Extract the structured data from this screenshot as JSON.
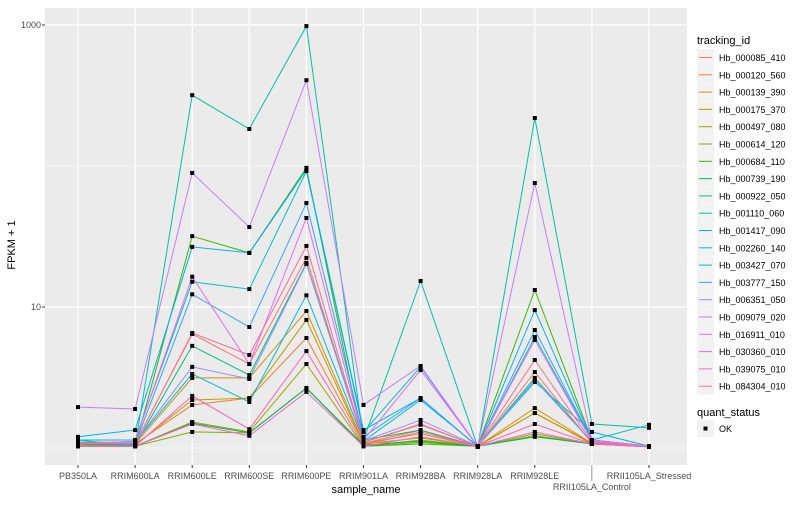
{
  "chart_data": {
    "type": "line",
    "xlabel": "sample_name",
    "ylabel": "FPKM + 1",
    "y_scale": "log10",
    "ylim": [
      1,
      1000
    ],
    "y_ticks": [
      10,
      1000
    ],
    "y_tick_labels": [
      "10",
      "1000"
    ],
    "grid": true,
    "legend_position": "right",
    "categories": [
      "PB350LA",
      "RRIM600LA",
      "RRIM600LE",
      "RRIM600SE",
      "RRIM600PE",
      "RRIM901LA",
      "RRIM928BA",
      "RRIM928LA",
      "RRIM928LE",
      "RRII105LA_Control",
      "RRII105LA_Stressed"
    ],
    "legend_title": "tracking_id",
    "series": [
      {
        "name": "Hb_000085_410",
        "color": "#F8766D",
        "values": [
          1.07,
          1.08,
          6.43,
          3.94,
          22.3,
          1.1,
          1.46,
          1.03,
          3.46,
          1.08,
          1.03
        ]
      },
      {
        "name": "Hb_000120_560",
        "color": "#EA8331",
        "values": [
          1.07,
          1.07,
          2.02,
          2.26,
          6.03,
          1.08,
          1.34,
          1.03,
          1.77,
          1.08,
          1.02
        ]
      },
      {
        "name": "Hb_000139_390",
        "color": "#D89000",
        "values": [
          1.05,
          1.07,
          3.14,
          3.14,
          9.37,
          1.08,
          1.26,
          1.03,
          1.92,
          1.08,
          1.02
        ]
      },
      {
        "name": "Hb_000175_370",
        "color": "#C09B00",
        "values": [
          1.05,
          1.05,
          2.19,
          2.26,
          8.1,
          1.07,
          1.18,
          1.03,
          1.77,
          1.07,
          1.02
        ]
      },
      {
        "name": "Hb_000497_080",
        "color": "#A3A500",
        "values": [
          1.03,
          1.03,
          1.53,
          1.3,
          3.94,
          1.03,
          1.14,
          1.03,
          1.26,
          1.07,
          1.02
        ]
      },
      {
        "name": "Hb_000614_120",
        "color": "#7CAE00",
        "values": [
          1.03,
          1.03,
          1.3,
          1.28,
          2.66,
          1.03,
          1.1,
          1.03,
          1.22,
          1.07,
          1.02
        ]
      },
      {
        "name": "Hb_000684_110",
        "color": "#39B600",
        "values": [
          1.03,
          1.03,
          31.8,
          24.2,
          97,
          1.03,
          1.07,
          1.03,
          13.2,
          1.14,
          1.03
        ]
      },
      {
        "name": "Hb_000739_190",
        "color": "#00BB4E",
        "values": [
          1.03,
          1.03,
          1.5,
          1.28,
          2.66,
          1.05,
          1.12,
          1.03,
          1.2,
          1.07,
          1.02
        ]
      },
      {
        "name": "Hb_000922_050",
        "color": "#00BF7D",
        "values": [
          1.07,
          1.05,
          5.3,
          3.29,
          20.5,
          1.14,
          1.34,
          1.03,
          3.14,
          1.1,
          1.03
        ]
      },
      {
        "name": "Hb_001110_060",
        "color": "#00C1A3",
        "values": [
          1.14,
          1.03,
          318,
          183,
          982,
          1.14,
          15.3,
          1.02,
          219,
          1.48,
          1.39
        ]
      },
      {
        "name": "Hb_001417_090",
        "color": "#00BFC4",
        "values": [
          1.14,
          1.14,
          15.1,
          13.4,
          92,
          1.3,
          3.76,
          1.02,
          6.13,
          1.14,
          1.46
        ]
      },
      {
        "name": "Hb_002260_140",
        "color": "#00BAE0",
        "values": [
          1.1,
          1.1,
          3.35,
          2.12,
          12.1,
          1.12,
          2.19,
          1.03,
          2.94,
          1.3,
          1.03
        ]
      },
      {
        "name": "Hb_003427_070",
        "color": "#00B0F6",
        "values": [
          1.2,
          1.34,
          26.7,
          24.2,
          94,
          1.34,
          2.26,
          1.02,
          9.5,
          1.14,
          1.03
        ]
      },
      {
        "name": "Hb_003777_150",
        "color": "#35A2FF",
        "values": [
          1.1,
          1.07,
          12.3,
          7.21,
          54.6,
          1.2,
          2.26,
          1.02,
          6.87,
          1.14,
          1.03
        ]
      },
      {
        "name": "Hb_006351_050",
        "color": "#9590FF",
        "values": [
          1.08,
          1.1,
          3.76,
          3.09,
          20.2,
          1.12,
          1.58,
          1.03,
          3.03,
          1.1,
          1.03
        ]
      },
      {
        "name": "Hb_009079_020",
        "color": "#C77CFF",
        "values": [
          1.95,
          1.89,
          89.3,
          36.9,
          406,
          2.02,
          3.82,
          1.03,
          75.7,
          1.14,
          1.03
        ]
      },
      {
        "name": "Hb_016911_010",
        "color": "#E76BF3",
        "values": [
          1.07,
          1.12,
          16.4,
          3.94,
          42.8,
          1.14,
          3.57,
          1.03,
          5.84,
          1.12,
          1.02
        ]
      },
      {
        "name": "Hb_030360_010",
        "color": "#FA62DB",
        "values": [
          1.03,
          1.03,
          1.48,
          1.22,
          2.5,
          1.03,
          1.2,
          1.03,
          1.3,
          1.07,
          1.02
        ]
      },
      {
        "name": "Hb_039075_010",
        "color": "#FF62BC",
        "values": [
          1.03,
          1.03,
          2.34,
          1.36,
          4.87,
          1.05,
          1.3,
          1.03,
          1.48,
          1.07,
          1.02
        ]
      },
      {
        "name": "Hb_084304_010",
        "color": "#FF6C91",
        "values": [
          1.08,
          1.07,
          6.54,
          4.57,
          27.1,
          1.1,
          1.48,
          1.03,
          4.21,
          1.1,
          1.02
        ]
      }
    ],
    "shape_legend_title": "quant_status",
    "shape_legend_items": [
      "OK"
    ]
  }
}
